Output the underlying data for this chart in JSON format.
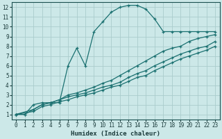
{
  "xlabel": "Humidex (Indice chaleur)",
  "bg_color": "#cce8e8",
  "grid_color": "#aacccc",
  "line_color": "#1a7070",
  "xlim": [
    -0.5,
    23.5
  ],
  "ylim": [
    0.5,
    12.5
  ],
  "xticks": [
    0,
    1,
    2,
    3,
    4,
    5,
    6,
    7,
    8,
    9,
    10,
    11,
    12,
    13,
    14,
    15,
    16,
    17,
    18,
    19,
    20,
    21,
    22,
    23
  ],
  "yticks": [
    1,
    2,
    3,
    4,
    5,
    6,
    7,
    8,
    9,
    10,
    11,
    12
  ],
  "line1_x": [
    0,
    1,
    2,
    3,
    4,
    5,
    6,
    7,
    8,
    9,
    10,
    11,
    12,
    13,
    14,
    15,
    16,
    17,
    18,
    19,
    20,
    21,
    22,
    23
  ],
  "line1_y": [
    1.0,
    1.0,
    2.0,
    2.2,
    2.2,
    2.2,
    6.0,
    7.8,
    6.0,
    9.5,
    10.5,
    11.5,
    12.0,
    12.2,
    12.2,
    11.8,
    10.8,
    9.5,
    9.5,
    9.5,
    9.5,
    9.5,
    9.5,
    9.5
  ],
  "line2_x": [
    0,
    1,
    2,
    3,
    4,
    5,
    6,
    7,
    8,
    9,
    10,
    11,
    12,
    13,
    14,
    15,
    16,
    17,
    18,
    19,
    20,
    21,
    22,
    23
  ],
  "line2_y": [
    1.0,
    1.0,
    1.5,
    2.0,
    2.2,
    2.5,
    3.0,
    3.2,
    3.5,
    3.8,
    4.2,
    4.5,
    5.0,
    5.5,
    6.0,
    6.5,
    7.0,
    7.5,
    7.8,
    8.0,
    8.5,
    8.8,
    9.0,
    9.2
  ],
  "line3_x": [
    0,
    2,
    3,
    4,
    5,
    6,
    7,
    8,
    9,
    10,
    11,
    12,
    13,
    14,
    15,
    16,
    17,
    18,
    19,
    20,
    21,
    22,
    23
  ],
  "line3_y": [
    1.0,
    1.5,
    2.0,
    2.2,
    2.5,
    2.8,
    3.0,
    3.2,
    3.5,
    3.8,
    4.0,
    4.3,
    4.8,
    5.2,
    5.5,
    6.0,
    6.4,
    6.8,
    7.2,
    7.5,
    7.8,
    8.0,
    8.5
  ],
  "line4_x": [
    0,
    2,
    3,
    4,
    5,
    6,
    7,
    8,
    9,
    10,
    11,
    12,
    13,
    14,
    15,
    16,
    17,
    18,
    19,
    20,
    21,
    22,
    23
  ],
  "line4_y": [
    1.0,
    1.3,
    1.8,
    2.0,
    2.3,
    2.5,
    2.8,
    3.0,
    3.2,
    3.5,
    3.8,
    4.0,
    4.4,
    4.8,
    5.0,
    5.5,
    5.9,
    6.3,
    6.7,
    7.0,
    7.3,
    7.6,
    8.0
  ]
}
